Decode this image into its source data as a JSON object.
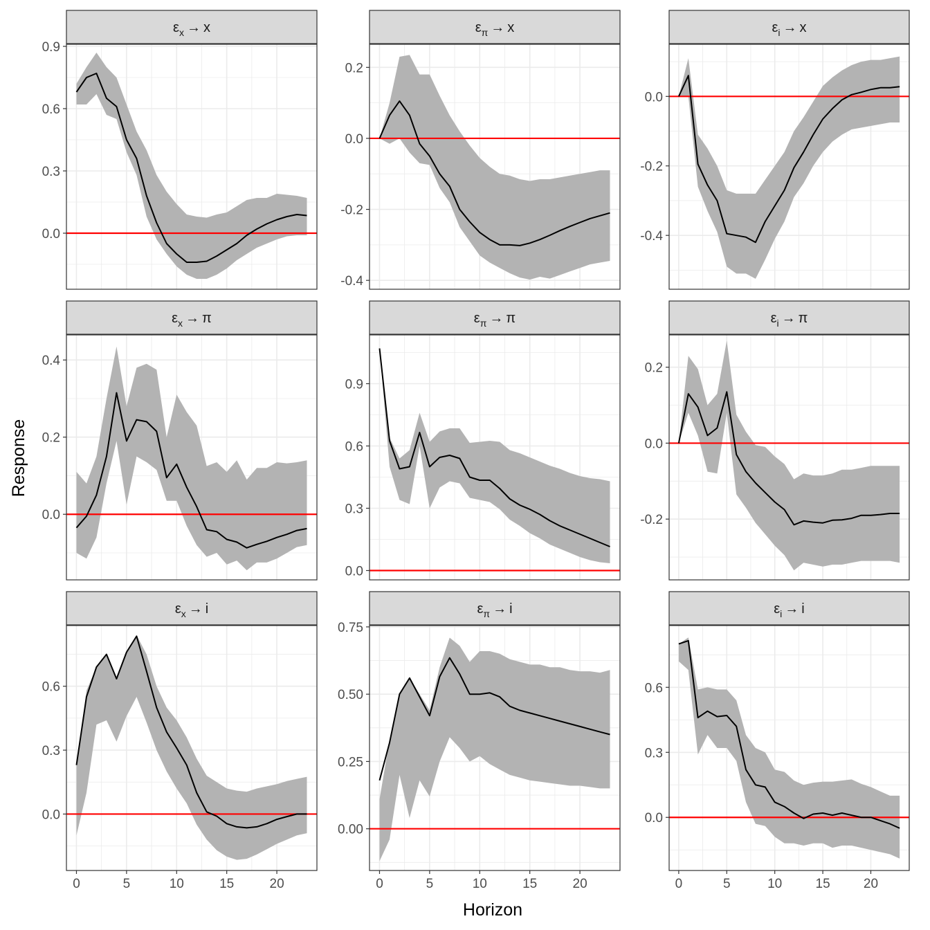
{
  "ylabel": "Response",
  "xlabel": "Horizon",
  "colors": {
    "line": "#000000",
    "band": "#b3b3b3",
    "zero": "#ff0000",
    "strip": "#d9d9d9",
    "grid": "#ebebeb"
  },
  "chart_data": [
    {
      "type": "line",
      "title": {
        "shock": "ε",
        "shock_sub": "x",
        "arrow": "→",
        "response": "x"
      },
      "xlim": [
        -1,
        24
      ],
      "xticks": [
        0,
        5,
        10,
        15,
        20
      ],
      "xtick_labels": [
        "0",
        "5",
        "10",
        "15",
        "20"
      ],
      "ylim": [
        -0.27,
        0.91
      ],
      "yticks": [
        0.0,
        0.3,
        0.6,
        0.9
      ],
      "ytick_labels": [
        "0.0",
        "0.3",
        "0.6",
        "0.9"
      ],
      "x": [
        0,
        1,
        2,
        3,
        4,
        5,
        6,
        7,
        8,
        9,
        10,
        11,
        12,
        13,
        14,
        15,
        16,
        17,
        18,
        19,
        20,
        21,
        22,
        23
      ],
      "y": [
        0.68,
        0.75,
        0.77,
        0.65,
        0.61,
        0.45,
        0.36,
        0.18,
        0.05,
        -0.05,
        -0.1,
        -0.14,
        -0.14,
        -0.135,
        -0.11,
        -0.08,
        -0.05,
        -0.01,
        0.02,
        0.045,
        0.065,
        0.08,
        0.09,
        0.085
      ],
      "lower": [
        0.62,
        0.62,
        0.67,
        0.57,
        0.55,
        0.39,
        0.28,
        0.08,
        -0.03,
        -0.1,
        -0.16,
        -0.2,
        -0.22,
        -0.22,
        -0.2,
        -0.17,
        -0.13,
        -0.1,
        -0.07,
        -0.05,
        -0.03,
        -0.015,
        -0.01,
        -0.01
      ],
      "upper": [
        0.72,
        0.8,
        0.87,
        0.8,
        0.75,
        0.62,
        0.49,
        0.4,
        0.28,
        0.2,
        0.14,
        0.09,
        0.08,
        0.075,
        0.09,
        0.1,
        0.13,
        0.16,
        0.17,
        0.17,
        0.19,
        0.185,
        0.18,
        0.17
      ]
    },
    {
      "type": "line",
      "title": {
        "shock": "ε",
        "shock_sub": "π",
        "arrow": "→",
        "response": "x"
      },
      "xlim": [
        -1,
        24
      ],
      "xticks": [
        0,
        5,
        10,
        15,
        20
      ],
      "xtick_labels": [
        "0",
        "5",
        "10",
        "15",
        "20"
      ],
      "ylim": [
        -0.425,
        0.265
      ],
      "yticks": [
        -0.4,
        -0.2,
        0.0,
        0.2
      ],
      "ytick_labels": [
        "-0.4",
        "-0.2",
        "0.0",
        "0.2"
      ],
      "x": [
        0,
        1,
        2,
        3,
        4,
        5,
        6,
        7,
        8,
        9,
        10,
        11,
        12,
        13,
        14,
        15,
        16,
        17,
        18,
        19,
        20,
        21,
        22,
        23
      ],
      "y": [
        0.0,
        0.065,
        0.105,
        0.065,
        -0.015,
        -0.05,
        -0.1,
        -0.135,
        -0.2,
        -0.235,
        -0.265,
        -0.285,
        -0.3,
        -0.3,
        -0.302,
        -0.295,
        -0.285,
        -0.273,
        -0.26,
        -0.248,
        -0.237,
        -0.226,
        -0.218,
        -0.21
      ],
      "lower": [
        0.0,
        -0.015,
        0.0,
        -0.04,
        -0.07,
        -0.075,
        -0.14,
        -0.18,
        -0.25,
        -0.29,
        -0.33,
        -0.35,
        -0.365,
        -0.38,
        -0.392,
        -0.398,
        -0.39,
        -0.395,
        -0.385,
        -0.375,
        -0.365,
        -0.355,
        -0.35,
        -0.345
      ],
      "upper": [
        0.0,
        0.1,
        0.23,
        0.235,
        0.18,
        0.18,
        0.12,
        0.065,
        0.02,
        -0.02,
        -0.055,
        -0.08,
        -0.1,
        -0.105,
        -0.115,
        -0.12,
        -0.115,
        -0.115,
        -0.11,
        -0.105,
        -0.1,
        -0.095,
        -0.09,
        -0.09
      ]
    },
    {
      "type": "line",
      "title": {
        "shock": "ε",
        "shock_sub": "i",
        "arrow": "→",
        "response": "x"
      },
      "xlim": [
        -1,
        24
      ],
      "xticks": [
        0,
        5,
        10,
        15,
        20
      ],
      "xtick_labels": [
        "0",
        "5",
        "10",
        "15",
        "20"
      ],
      "ylim": [
        -0.555,
        0.15
      ],
      "yticks": [
        -0.4,
        -0.2,
        0.0
      ],
      "ytick_labels": [
        "-0.4",
        "-0.2",
        "0.0"
      ],
      "x": [
        0,
        1,
        2,
        3,
        4,
        5,
        6,
        7,
        8,
        9,
        10,
        11,
        12,
        13,
        14,
        15,
        16,
        17,
        18,
        19,
        20,
        21,
        22,
        23
      ],
      "y": [
        0.0,
        0.06,
        -0.195,
        -0.255,
        -0.3,
        -0.395,
        -0.4,
        -0.405,
        -0.42,
        -0.36,
        -0.315,
        -0.27,
        -0.205,
        -0.16,
        -0.11,
        -0.065,
        -0.035,
        -0.01,
        0.005,
        0.012,
        0.02,
        0.025,
        0.025,
        0.028
      ],
      "lower": [
        0.0,
        0.0,
        -0.26,
        -0.33,
        -0.39,
        -0.49,
        -0.51,
        -0.51,
        -0.525,
        -0.47,
        -0.41,
        -0.36,
        -0.29,
        -0.25,
        -0.2,
        -0.16,
        -0.13,
        -0.11,
        -0.095,
        -0.09,
        -0.085,
        -0.08,
        -0.075,
        -0.075
      ],
      "upper": [
        0.0,
        0.11,
        -0.11,
        -0.15,
        -0.2,
        -0.27,
        -0.28,
        -0.28,
        -0.28,
        -0.24,
        -0.2,
        -0.16,
        -0.1,
        -0.06,
        -0.015,
        0.03,
        0.055,
        0.075,
        0.09,
        0.1,
        0.105,
        0.105,
        0.11,
        0.115
      ]
    },
    {
      "type": "line",
      "title": {
        "shock": "ε",
        "shock_sub": "x",
        "arrow": "→",
        "response": "π"
      },
      "xlim": [
        -1,
        24
      ],
      "xticks": [
        0,
        5,
        10,
        15,
        20
      ],
      "xtick_labels": [
        "0",
        "5",
        "10",
        "15",
        "20"
      ],
      "ylim": [
        -0.17,
        0.465
      ],
      "yticks": [
        0.0,
        0.2,
        0.4
      ],
      "ytick_labels": [
        "0.0",
        "0.2",
        "0.4"
      ],
      "x": [
        0,
        1,
        2,
        3,
        4,
        5,
        6,
        7,
        8,
        9,
        10,
        11,
        12,
        13,
        14,
        15,
        16,
        17,
        18,
        19,
        20,
        21,
        22,
        23
      ],
      "y": [
        -0.035,
        -0.005,
        0.05,
        0.15,
        0.315,
        0.19,
        0.245,
        0.24,
        0.215,
        0.095,
        0.13,
        0.07,
        0.02,
        -0.04,
        -0.045,
        -0.065,
        -0.072,
        -0.087,
        -0.078,
        -0.07,
        -0.06,
        -0.052,
        -0.042,
        -0.037
      ],
      "lower": [
        -0.1,
        -0.115,
        -0.06,
        0.08,
        0.19,
        0.025,
        0.15,
        0.135,
        0.115,
        0.035,
        0.035,
        -0.03,
        -0.08,
        -0.11,
        -0.1,
        -0.13,
        -0.12,
        -0.145,
        -0.125,
        -0.125,
        -0.115,
        -0.1,
        -0.085,
        -0.08
      ],
      "upper": [
        0.11,
        0.08,
        0.15,
        0.3,
        0.435,
        0.28,
        0.38,
        0.39,
        0.375,
        0.2,
        0.31,
        0.265,
        0.23,
        0.125,
        0.135,
        0.11,
        0.14,
        0.09,
        0.12,
        0.12,
        0.135,
        0.132,
        0.135,
        0.14
      ]
    },
    {
      "type": "line",
      "title": {
        "shock": "ε",
        "shock_sub": "π",
        "arrow": "→",
        "response": "π"
      },
      "xlim": [
        -1,
        24
      ],
      "xticks": [
        0,
        5,
        10,
        15,
        20
      ],
      "xtick_labels": [
        "0",
        "5",
        "10",
        "15",
        "20"
      ],
      "ylim": [
        -0.045,
        1.135
      ],
      "yticks": [
        0.0,
        0.3,
        0.6,
        0.9
      ],
      "ytick_labels": [
        "0.0",
        "0.3",
        "0.6",
        "0.9"
      ],
      "x": [
        0,
        1,
        2,
        3,
        4,
        5,
        6,
        7,
        8,
        9,
        10,
        11,
        12,
        13,
        14,
        15,
        16,
        17,
        18,
        19,
        20,
        21,
        22,
        23
      ],
      "y": [
        1.07,
        0.625,
        0.49,
        0.5,
        0.665,
        0.5,
        0.545,
        0.555,
        0.54,
        0.45,
        0.435,
        0.435,
        0.395,
        0.345,
        0.315,
        0.295,
        0.27,
        0.24,
        0.215,
        0.195,
        0.175,
        0.155,
        0.135,
        0.115
      ],
      "lower": [
        1.07,
        0.5,
        0.34,
        0.32,
        0.6,
        0.3,
        0.4,
        0.43,
        0.42,
        0.35,
        0.34,
        0.33,
        0.295,
        0.245,
        0.215,
        0.18,
        0.155,
        0.125,
        0.105,
        0.085,
        0.065,
        0.05,
        0.04,
        0.035
      ],
      "upper": [
        1.07,
        0.64,
        0.54,
        0.58,
        0.76,
        0.62,
        0.67,
        0.685,
        0.685,
        0.615,
        0.62,
        0.625,
        0.62,
        0.58,
        0.565,
        0.545,
        0.525,
        0.505,
        0.49,
        0.47,
        0.455,
        0.445,
        0.44,
        0.43
      ]
    },
    {
      "type": "line",
      "title": {
        "shock": "ε",
        "shock_sub": "i",
        "arrow": "→",
        "response": "π"
      },
      "xlim": [
        -1,
        24
      ],
      "xticks": [
        0,
        5,
        10,
        15,
        20
      ],
      "xtick_labels": [
        "0",
        "5",
        "10",
        "15",
        "20"
      ],
      "ylim": [
        -0.36,
        0.285
      ],
      "yticks": [
        -0.2,
        0.0,
        0.2
      ],
      "ytick_labels": [
        "-0.2",
        "0.0",
        "0.2"
      ],
      "x": [
        0,
        1,
        2,
        3,
        4,
        5,
        6,
        7,
        8,
        9,
        10,
        11,
        12,
        13,
        14,
        15,
        16,
        17,
        18,
        19,
        20,
        21,
        22,
        23
      ],
      "y": [
        0.0,
        0.13,
        0.095,
        0.02,
        0.04,
        0.135,
        -0.03,
        -0.075,
        -0.105,
        -0.13,
        -0.155,
        -0.175,
        -0.215,
        -0.205,
        -0.208,
        -0.21,
        -0.203,
        -0.202,
        -0.198,
        -0.19,
        -0.19,
        -0.188,
        -0.185,
        -0.185
      ],
      "lower": [
        0.0,
        0.08,
        0.02,
        -0.075,
        -0.08,
        0.08,
        -0.135,
        -0.17,
        -0.21,
        -0.24,
        -0.27,
        -0.295,
        -0.335,
        -0.315,
        -0.32,
        -0.325,
        -0.32,
        -0.32,
        -0.315,
        -0.31,
        -0.31,
        -0.31,
        -0.31,
        -0.315
      ],
      "upper": [
        0.0,
        0.23,
        0.195,
        0.1,
        0.13,
        0.27,
        0.075,
        0.03,
        -0.005,
        -0.01,
        -0.035,
        -0.055,
        -0.095,
        -0.08,
        -0.085,
        -0.085,
        -0.08,
        -0.07,
        -0.07,
        -0.065,
        -0.06,
        -0.06,
        -0.06,
        -0.06
      ]
    },
    {
      "type": "line",
      "title": {
        "shock": "ε",
        "shock_sub": "x",
        "arrow": "→",
        "response": "i"
      },
      "xlim": [
        -1,
        24
      ],
      "xticks": [
        0,
        5,
        10,
        15,
        20
      ],
      "xtick_labels": [
        "0",
        "5",
        "10",
        "15",
        "20"
      ],
      "ylim": [
        -0.265,
        0.885
      ],
      "yticks": [
        0.0,
        0.3,
        0.6
      ],
      "ytick_labels": [
        "0.0",
        "0.3",
        "0.6"
      ],
      "x": [
        0,
        1,
        2,
        3,
        4,
        5,
        6,
        7,
        8,
        9,
        10,
        11,
        12,
        13,
        14,
        15,
        16,
        17,
        18,
        19,
        20,
        21,
        22,
        23
      ],
      "y": [
        0.23,
        0.55,
        0.69,
        0.75,
        0.635,
        0.76,
        0.835,
        0.67,
        0.5,
        0.385,
        0.31,
        0.23,
        0.1,
        0.01,
        -0.01,
        -0.045,
        -0.06,
        -0.065,
        -0.06,
        -0.045,
        -0.025,
        -0.012,
        0.0,
        0.0
      ],
      "lower": [
        -0.1,
        0.1,
        0.42,
        0.44,
        0.34,
        0.46,
        0.55,
        0.43,
        0.3,
        0.2,
        0.12,
        0.05,
        -0.05,
        -0.12,
        -0.17,
        -0.2,
        -0.215,
        -0.21,
        -0.19,
        -0.165,
        -0.14,
        -0.12,
        -0.1,
        -0.09
      ],
      "upper": [
        0.23,
        0.58,
        0.69,
        0.75,
        0.635,
        0.76,
        0.84,
        0.75,
        0.6,
        0.5,
        0.44,
        0.36,
        0.26,
        0.18,
        0.15,
        0.12,
        0.11,
        0.105,
        0.12,
        0.13,
        0.14,
        0.155,
        0.165,
        0.175
      ]
    },
    {
      "type": "line",
      "title": {
        "shock": "ε",
        "shock_sub": "π",
        "arrow": "→",
        "response": "i"
      },
      "xlim": [
        -1,
        24
      ],
      "xticks": [
        0,
        5,
        10,
        15,
        20
      ],
      "xtick_labels": [
        "0",
        "5",
        "10",
        "15",
        "20"
      ],
      "ylim": [
        -0.155,
        0.755
      ],
      "yticks": [
        0.0,
        0.25,
        0.5,
        0.75
      ],
      "ytick_labels": [
        "0.00",
        "0.25",
        "0.50",
        "0.75"
      ],
      "x": [
        0,
        1,
        2,
        3,
        4,
        5,
        6,
        7,
        8,
        9,
        10,
        11,
        12,
        13,
        14,
        15,
        16,
        17,
        18,
        19,
        20,
        21,
        22,
        23
      ],
      "y": [
        0.18,
        0.32,
        0.5,
        0.56,
        0.49,
        0.42,
        0.565,
        0.635,
        0.575,
        0.5,
        0.5,
        0.505,
        0.49,
        0.455,
        0.44,
        0.43,
        0.42,
        0.41,
        0.4,
        0.39,
        0.38,
        0.37,
        0.36,
        0.35
      ],
      "lower": [
        -0.12,
        -0.04,
        0.2,
        0.04,
        0.18,
        0.12,
        0.25,
        0.34,
        0.3,
        0.25,
        0.27,
        0.24,
        0.22,
        0.2,
        0.19,
        0.18,
        0.175,
        0.17,
        0.165,
        0.16,
        0.16,
        0.155,
        0.15,
        0.15
      ],
      "upper": [
        0.11,
        0.33,
        0.5,
        0.56,
        0.5,
        0.44,
        0.6,
        0.71,
        0.68,
        0.62,
        0.66,
        0.66,
        0.65,
        0.63,
        0.62,
        0.61,
        0.61,
        0.6,
        0.6,
        0.59,
        0.585,
        0.585,
        0.58,
        0.59
      ]
    },
    {
      "type": "line",
      "title": {
        "shock": "ε",
        "shock_sub": "i",
        "arrow": "→",
        "response": "i"
      },
      "xlim": [
        -1,
        24
      ],
      "xticks": [
        0,
        5,
        10,
        15,
        20
      ],
      "xtick_labels": [
        "0",
        "5",
        "10",
        "15",
        "20"
      ],
      "ylim": [
        -0.245,
        0.885
      ],
      "yticks": [
        0.0,
        0.3,
        0.6
      ],
      "ytick_labels": [
        "0.0",
        "0.3",
        "0.6"
      ],
      "x": [
        0,
        1,
        2,
        3,
        4,
        5,
        6,
        7,
        8,
        9,
        10,
        11,
        12,
        13,
        14,
        15,
        16,
        17,
        18,
        19,
        20,
        21,
        22,
        23
      ],
      "y": [
        0.8,
        0.815,
        0.46,
        0.49,
        0.465,
        0.47,
        0.42,
        0.22,
        0.15,
        0.14,
        0.07,
        0.05,
        0.02,
        -0.005,
        0.015,
        0.02,
        0.01,
        0.02,
        0.01,
        0.0,
        0.0,
        -0.015,
        -0.03,
        -0.05
      ],
      "lower": [
        0.72,
        0.68,
        0.29,
        0.38,
        0.32,
        0.32,
        0.26,
        0.07,
        -0.03,
        -0.04,
        -0.09,
        -0.12,
        -0.12,
        -0.13,
        -0.12,
        -0.12,
        -0.14,
        -0.13,
        -0.13,
        -0.14,
        -0.15,
        -0.16,
        -0.17,
        -0.19
      ],
      "upper": [
        0.8,
        0.83,
        0.59,
        0.6,
        0.59,
        0.59,
        0.54,
        0.38,
        0.32,
        0.3,
        0.22,
        0.21,
        0.17,
        0.15,
        0.16,
        0.165,
        0.165,
        0.17,
        0.175,
        0.155,
        0.14,
        0.12,
        0.1,
        0.1
      ]
    }
  ]
}
